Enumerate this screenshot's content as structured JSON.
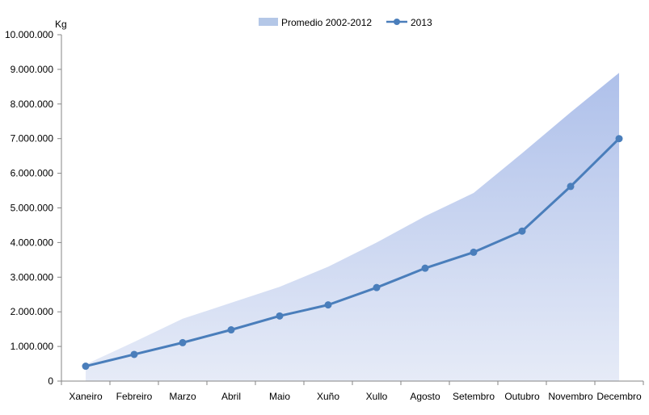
{
  "chart_data": {
    "type": "line",
    "ylabel": "Kg",
    "ylim": [
      0,
      10000000
    ],
    "y_ticks": [
      "0",
      "1.000.000",
      "2.000.000",
      "3.000.000",
      "4.000.000",
      "5.000.000",
      "6.000.000",
      "7.000.000",
      "8.000.000",
      "9.000.000",
      "10.000.000"
    ],
    "categories": [
      "Xaneiro",
      "Febreiro",
      "Marzo",
      "Abril",
      "Maio",
      "Xuño",
      "Xullo",
      "Agosto",
      "Setembro",
      "Outubro",
      "Novembro",
      "Decembro"
    ],
    "series": [
      {
        "name": "Promedio 2002-2012",
        "kind": "area",
        "color": "#b4c7e7",
        "values": [
          480000,
          1130000,
          1800000,
          2260000,
          2720000,
          3300000,
          4000000,
          4760000,
          5430000,
          6580000,
          7760000,
          8900000
        ]
      },
      {
        "name": "2013",
        "kind": "line",
        "color": "#4a7ebb",
        "values": [
          430000,
          770000,
          1110000,
          1480000,
          1880000,
          2200000,
          2700000,
          3260000,
          3720000,
          4330000,
          5620000,
          7000000
        ]
      }
    ],
    "legend_position": "top",
    "grid": false
  }
}
